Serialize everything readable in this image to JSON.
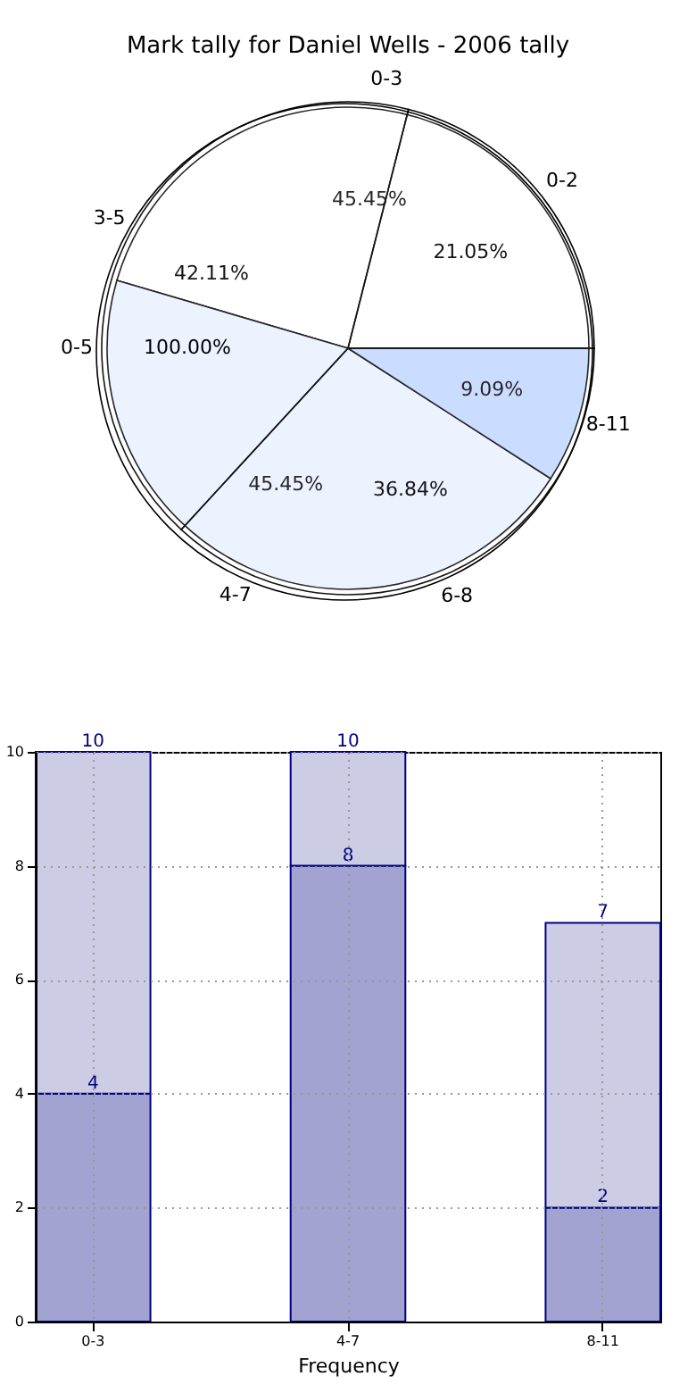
{
  "chart_data": [
    {
      "type": "pie",
      "title": "Mark tally for Daniel Wells - 2006 tally",
      "categories": [
        "0-3",
        "4-7",
        "8-11"
      ],
      "values": [
        45.45,
        45.45,
        9.09
      ],
      "colors": [
        "#ffffff",
        "#eaf0fe",
        "#c2d6ff"
      ],
      "value_labels": [
        "45.45%",
        "45.45%",
        "9.09%"
      ]
    },
    {
      "type": "pie",
      "categories": [
        "0-2",
        "3-5",
        "6-8"
      ],
      "values": [
        21.05,
        42.11,
        36.84
      ],
      "value_labels": [
        "21.05%",
        "42.11%",
        "36.84%"
      ]
    },
    {
      "type": "pie",
      "categories": [
        "0-5"
      ],
      "values": [
        100
      ],
      "value_labels": [
        "100.00%"
      ]
    },
    {
      "type": "bar",
      "xlabel": "Frequency",
      "categories": [
        "0-3",
        "4-7",
        "8-11"
      ],
      "series": [
        {
          "color": "#a3a3d1",
          "values": [
            4,
            8,
            2
          ],
          "value_labels": [
            "4",
            "8",
            "2"
          ]
        },
        {
          "color": "#cccce5",
          "values": [
            6,
            2,
            5
          ]
        }
      ],
      "stacked": true,
      "totals": [
        "10",
        "10",
        "7"
      ],
      "ylim": [
        0,
        10
      ],
      "yticks": [
        0,
        2,
        4,
        6,
        8,
        10
      ],
      "grid": true
    }
  ]
}
